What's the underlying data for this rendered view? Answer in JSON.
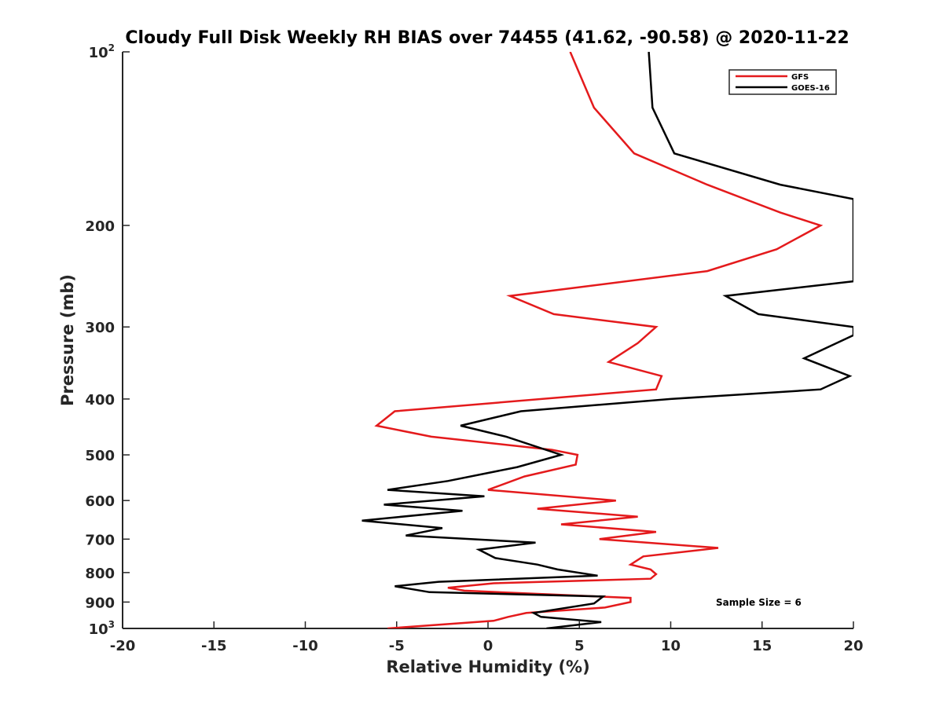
{
  "chart_data": {
    "type": "line",
    "title": "Cloudy Full Disk Weekly RH BIAS over 74455 (41.62, -90.58) @ 2020-11-22",
    "xlabel": "Relative Humidity (%)",
    "ylabel": "Pressure (mb)",
    "xlim": [
      -20,
      20
    ],
    "ylim": [
      100,
      1000
    ],
    "y_scale": "log",
    "y_reversed": true,
    "grid": false,
    "legend_position": "top-right",
    "x_ticks": [
      {
        "value": -20,
        "label": "-20"
      },
      {
        "value": -15,
        "label": "-15"
      },
      {
        "value": -10,
        "label": "-10"
      },
      {
        "value": -5,
        "label": "-5"
      },
      {
        "value": 0,
        "label": "0"
      },
      {
        "value": 5,
        "label": "5"
      },
      {
        "value": 10,
        "label": "10"
      },
      {
        "value": 15,
        "label": "15"
      },
      {
        "value": 20,
        "label": "20"
      }
    ],
    "y_ticks": [
      {
        "value": 100,
        "base": "10",
        "sup": "2"
      },
      {
        "value": 200,
        "base": "200",
        "sup": ""
      },
      {
        "value": 300,
        "base": "300",
        "sup": ""
      },
      {
        "value": 400,
        "base": "400",
        "sup": ""
      },
      {
        "value": 500,
        "base": "500",
        "sup": ""
      },
      {
        "value": 600,
        "base": "600",
        "sup": ""
      },
      {
        "value": 700,
        "base": "700",
        "sup": ""
      },
      {
        "value": 800,
        "base": "800",
        "sup": ""
      },
      {
        "value": 900,
        "base": "900",
        "sup": ""
      },
      {
        "value": 1000,
        "base": "10",
        "sup": "3"
      }
    ],
    "annotation": "Sample Size = 6",
    "series": [
      {
        "name": "GFS",
        "color": "#e41a1c",
        "points": [
          [
            4.5,
            100
          ],
          [
            5.8,
            125
          ],
          [
            8.0,
            150
          ],
          [
            12.0,
            170
          ],
          [
            16.0,
            190
          ],
          [
            18.2,
            200
          ],
          [
            15.8,
            220
          ],
          [
            12.0,
            240
          ],
          [
            1.2,
            265
          ],
          [
            3.6,
            285
          ],
          [
            9.2,
            300
          ],
          [
            8.2,
            320
          ],
          [
            6.6,
            345
          ],
          [
            9.5,
            365
          ],
          [
            9.2,
            385
          ],
          [
            -5.1,
            420
          ],
          [
            -6.1,
            445
          ],
          [
            -3.1,
            465
          ],
          [
            3.5,
            490
          ],
          [
            4.9,
            500
          ],
          [
            4.8,
            520
          ],
          [
            2.0,
            545
          ],
          [
            0.0,
            575
          ],
          [
            7.0,
            600
          ],
          [
            2.7,
            620
          ],
          [
            8.2,
            640
          ],
          [
            4.0,
            660
          ],
          [
            9.2,
            680
          ],
          [
            6.1,
            700
          ],
          [
            12.6,
            725
          ],
          [
            8.5,
            750
          ],
          [
            7.8,
            775
          ],
          [
            8.9,
            790
          ],
          [
            9.2,
            805
          ],
          [
            8.9,
            820
          ],
          [
            0.3,
            835
          ],
          [
            -2.2,
            850
          ],
          [
            -1.3,
            860
          ],
          [
            7.8,
            885
          ],
          [
            7.8,
            900
          ],
          [
            6.4,
            920
          ],
          [
            2.1,
            940
          ],
          [
            1.1,
            955
          ],
          [
            0.3,
            970
          ],
          [
            -5.5,
            1000
          ]
        ]
      },
      {
        "name": "GOES-16",
        "color": "#000000",
        "points": [
          [
            8.8,
            100
          ],
          [
            9.0,
            125
          ],
          [
            10.2,
            150
          ],
          [
            16.0,
            170
          ],
          [
            20.0,
            180
          ],
          [
            20.0,
            250
          ],
          [
            13.0,
            265
          ],
          [
            14.8,
            285
          ],
          [
            20.0,
            300
          ],
          [
            20.0,
            310
          ],
          [
            17.3,
            340
          ],
          [
            19.8,
            365
          ],
          [
            18.2,
            385
          ],
          [
            10.0,
            400
          ],
          [
            1.8,
            420
          ],
          [
            -1.5,
            445
          ],
          [
            1.0,
            465
          ],
          [
            4.0,
            500
          ],
          [
            1.6,
            525
          ],
          [
            -2.2,
            555
          ],
          [
            -5.5,
            575
          ],
          [
            -0.2,
            590
          ],
          [
            -5.7,
            610
          ],
          [
            -1.4,
            625
          ],
          [
            -6.9,
            650
          ],
          [
            -2.5,
            670
          ],
          [
            -4.5,
            690
          ],
          [
            2.6,
            710
          ],
          [
            -0.5,
            730
          ],
          [
            0.4,
            755
          ],
          [
            2.7,
            775
          ],
          [
            3.8,
            790
          ],
          [
            6.0,
            810
          ],
          [
            -2.7,
            830
          ],
          [
            -5.1,
            845
          ],
          [
            -3.2,
            865
          ],
          [
            6.3,
            880
          ],
          [
            5.8,
            905
          ],
          [
            2.5,
            940
          ],
          [
            2.9,
            955
          ],
          [
            6.2,
            975
          ],
          [
            3.2,
            1000
          ]
        ]
      }
    ]
  }
}
